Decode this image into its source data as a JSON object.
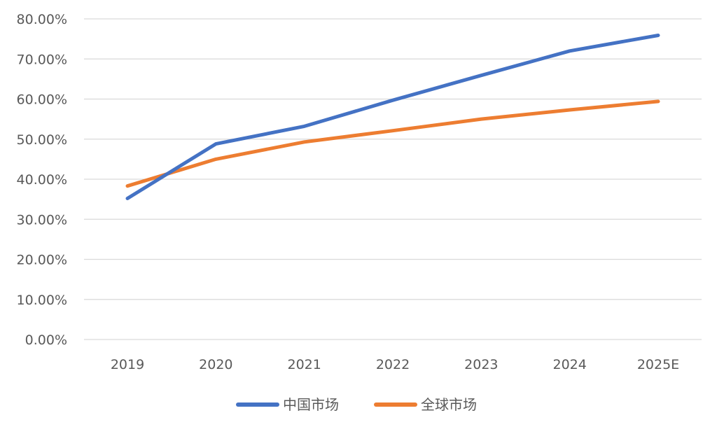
{
  "chart_data": {
    "type": "line",
    "title": "",
    "xlabel": "",
    "ylabel": "",
    "categories": [
      "2019",
      "2020",
      "2021",
      "2022",
      "2023",
      "2024",
      "2025E"
    ],
    "y_ticks": [
      "0.00%",
      "10.00%",
      "20.00%",
      "30.00%",
      "40.00%",
      "50.00%",
      "60.00%",
      "70.00%",
      "80.00%"
    ],
    "ylim": [
      0,
      80
    ],
    "y_unit": "%",
    "grid": true,
    "legend_position": "bottom",
    "series": [
      {
        "name": "中国市场",
        "color": "#4472c4",
        "values": [
          35.2,
          48.8,
          53.2,
          59.7,
          65.9,
          72.0,
          75.9
        ]
      },
      {
        "name": "全球市场",
        "color": "#ed7d31",
        "values": [
          38.3,
          45.0,
          49.3,
          52.1,
          55.0,
          57.3,
          59.4
        ]
      }
    ]
  }
}
